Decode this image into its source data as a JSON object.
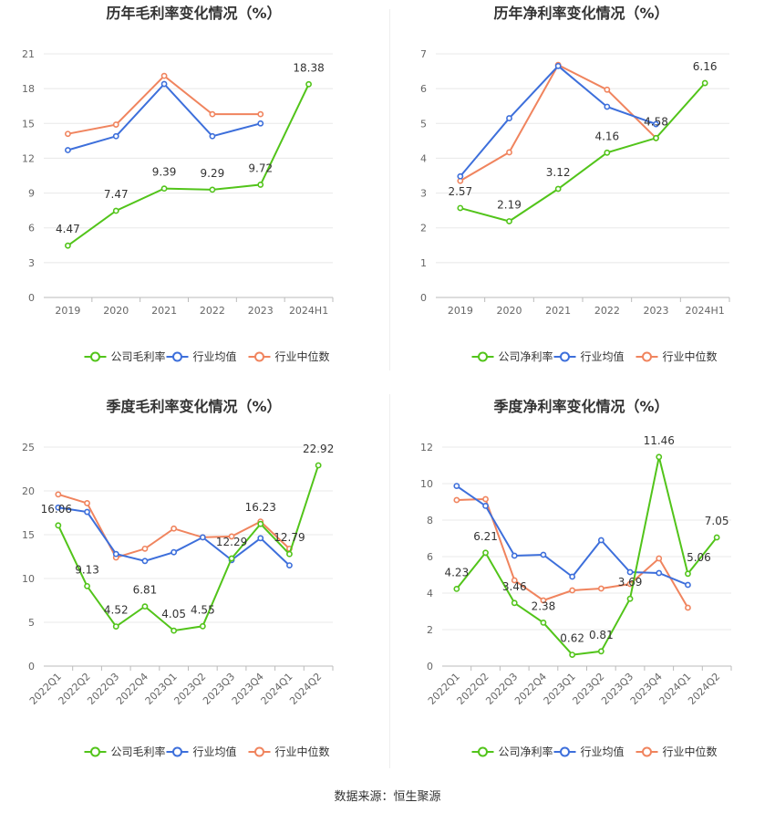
{
  "source": "数据来源：恒生聚源",
  "legend_colors": {
    "company": "#52c41a",
    "avg": "#3d6fdb",
    "median": "#f0845e"
  },
  "chart_data": [
    {
      "type": "line",
      "title": "历年毛利率变化情况（%）",
      "categories": [
        "2019",
        "2020",
        "2021",
        "2022",
        "2023",
        "2024H1"
      ],
      "ylim": [
        0,
        21
      ],
      "yticks": [
        0,
        3,
        6,
        9,
        12,
        15,
        18,
        21
      ],
      "xlabel_rotate": false,
      "series": [
        {
          "name": "公司毛利率",
          "color": "#52c41a",
          "labeled": true,
          "values": [
            4.47,
            7.47,
            9.39,
            9.29,
            9.72,
            18.38
          ]
        },
        {
          "name": "行业均值",
          "color": "#3d6fdb",
          "labeled": false,
          "values": [
            12.7,
            13.9,
            18.4,
            13.9,
            15.0,
            null
          ]
        },
        {
          "name": "行业中位数",
          "color": "#f0845e",
          "labeled": false,
          "values": [
            14.1,
            14.9,
            19.1,
            15.8,
            15.8,
            null
          ]
        }
      ]
    },
    {
      "type": "line",
      "title": "历年净利率变化情况（%）",
      "categories": [
        "2019",
        "2020",
        "2021",
        "2022",
        "2023",
        "2024H1"
      ],
      "ylim": [
        0,
        7
      ],
      "yticks": [
        0,
        1,
        2,
        3,
        4,
        5,
        6,
        7
      ],
      "xlabel_rotate": false,
      "series": [
        {
          "name": "公司净利率",
          "color": "#52c41a",
          "labeled": true,
          "values": [
            2.57,
            2.19,
            3.12,
            4.16,
            4.58,
            6.16
          ]
        },
        {
          "name": "行业均值",
          "color": "#3d6fdb",
          "labeled": false,
          "values": [
            3.48,
            5.15,
            6.65,
            5.48,
            4.98,
            null
          ]
        },
        {
          "name": "行业中位数",
          "color": "#f0845e",
          "labeled": false,
          "values": [
            3.35,
            4.17,
            6.68,
            5.97,
            4.58,
            null
          ]
        }
      ]
    },
    {
      "type": "line",
      "title": "季度毛利率变化情况（%）",
      "categories": [
        "2022Q1",
        "2022Q2",
        "2022Q3",
        "2022Q4",
        "2023Q1",
        "2023Q2",
        "2023Q3",
        "2023Q4",
        "2024Q1",
        "2024Q2"
      ],
      "ylim": [
        0,
        25
      ],
      "yticks": [
        0,
        5,
        10,
        15,
        20,
        25
      ],
      "xlabel_rotate": true,
      "series": [
        {
          "name": "公司毛利率",
          "color": "#52c41a",
          "labeled": true,
          "values": [
            16.06,
            9.13,
            4.52,
            6.81,
            4.05,
            4.55,
            12.29,
            16.23,
            12.79,
            22.92
          ]
        },
        {
          "name": "行业均值",
          "color": "#3d6fdb",
          "labeled": false,
          "values": [
            18.1,
            17.6,
            12.8,
            12.0,
            13.0,
            14.7,
            12.1,
            14.6,
            11.5,
            null
          ]
        },
        {
          "name": "行业中位数",
          "color": "#f0845e",
          "labeled": false,
          "values": [
            19.6,
            18.6,
            12.4,
            13.4,
            15.7,
            14.7,
            14.8,
            16.5,
            13.4,
            null
          ]
        }
      ]
    },
    {
      "type": "line",
      "title": "季度净利率变化情况（%）",
      "categories": [
        "2022Q1",
        "2022Q2",
        "2022Q3",
        "2022Q4",
        "2023Q1",
        "2023Q2",
        "2023Q3",
        "2023Q4",
        "2024Q1",
        "2024Q2"
      ],
      "ylim": [
        0,
        12
      ],
      "yticks": [
        0,
        2,
        4,
        6,
        8,
        10,
        12
      ],
      "xlabel_rotate": true,
      "series": [
        {
          "name": "公司净利率",
          "color": "#52c41a",
          "labeled": true,
          "values": [
            4.23,
            6.21,
            3.46,
            2.38,
            0.62,
            0.81,
            3.69,
            11.46,
            5.06,
            7.05
          ]
        },
        {
          "name": "行业均值",
          "color": "#3d6fdb",
          "labeled": false,
          "values": [
            9.87,
            8.78,
            6.05,
            6.1,
            4.9,
            6.9,
            5.15,
            5.1,
            4.45,
            null
          ]
        },
        {
          "name": "行业中位数",
          "color": "#f0845e",
          "labeled": false,
          "values": [
            9.1,
            9.15,
            4.7,
            3.6,
            4.15,
            4.25,
            4.5,
            5.9,
            3.2,
            null
          ]
        }
      ]
    }
  ]
}
